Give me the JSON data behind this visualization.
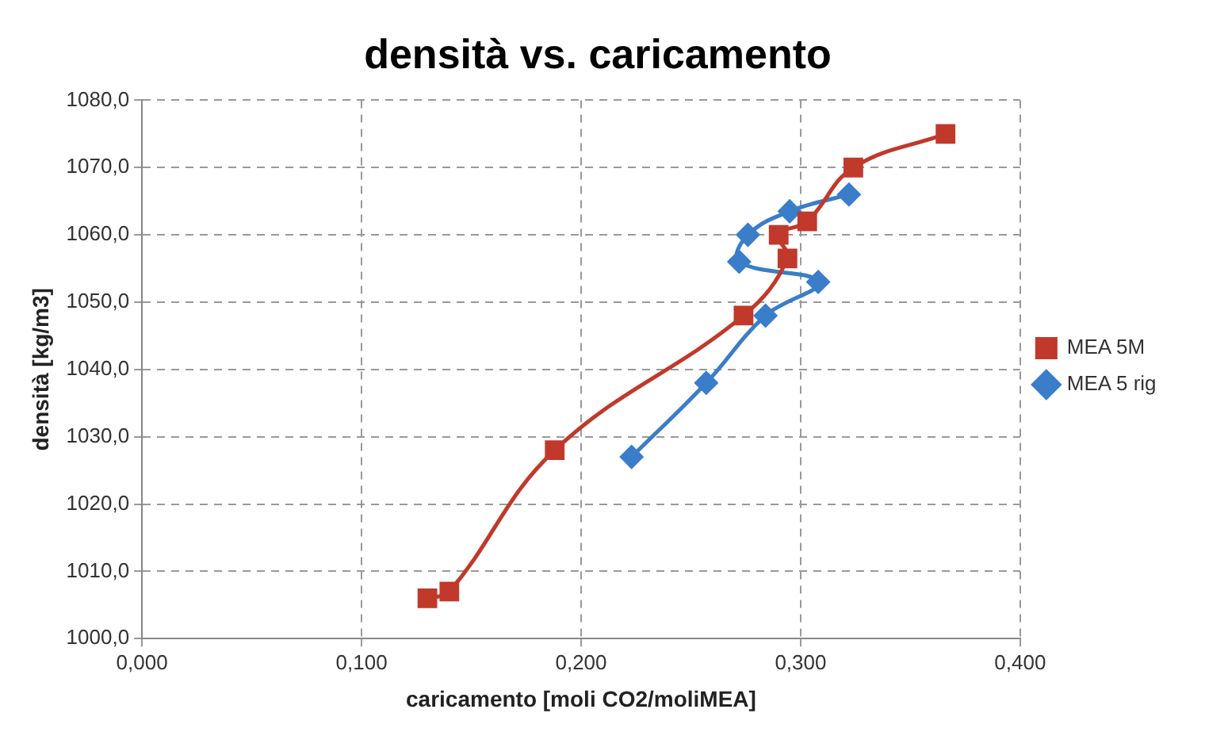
{
  "chart_data": {
    "type": "line",
    "title": "densità vs. caricamento",
    "xlabel": "caricamento [moli CO2/moliMEA]",
    "ylabel": "densità [kg/m3]",
    "series": [
      {
        "name": "MEA 5M",
        "color": "#c0392b",
        "marker": "square",
        "x": [
          0.13,
          0.14,
          0.188,
          0.274,
          0.294,
          0.29,
          0.303,
          0.324,
          0.366
        ],
        "values": [
          1006,
          1007,
          1028,
          1048,
          1056.5,
          1060,
          1062,
          1070,
          1075
        ]
      },
      {
        "name": "MEA 5 rig",
        "color": "#3a7dc9",
        "marker": "diamond",
        "x": [
          0.223,
          0.257,
          0.284,
          0.308,
          0.272,
          0.276,
          0.295,
          0.322
        ],
        "values": [
          1027,
          1038,
          1048,
          1053,
          1056,
          1060,
          1063.5,
          1066
        ]
      }
    ],
    "xlim": [
      0,
      0.4
    ],
    "xticks": [
      {
        "value": 0,
        "label": "0,000"
      },
      {
        "value": 0.1,
        "label": "0,100"
      },
      {
        "value": 0.2,
        "label": "0,200"
      },
      {
        "value": 0.3,
        "label": "0,300"
      },
      {
        "value": 0.4,
        "label": "0,400"
      }
    ],
    "ylim": [
      1000,
      1080
    ],
    "yticks": [
      {
        "value": 1000,
        "label": "1000,0"
      },
      {
        "value": 1010,
        "label": "1010,0"
      },
      {
        "value": 1020,
        "label": "1020,0"
      },
      {
        "value": 1030,
        "label": "1030,0"
      },
      {
        "value": 1040,
        "label": "1040,0"
      },
      {
        "value": 1050,
        "label": "1050,0"
      },
      {
        "value": 1060,
        "label": "1060,0"
      },
      {
        "value": 1070,
        "label": "1070,0"
      },
      {
        "value": 1080,
        "label": "1080,0"
      }
    ],
    "grid": true,
    "legend": "right"
  }
}
